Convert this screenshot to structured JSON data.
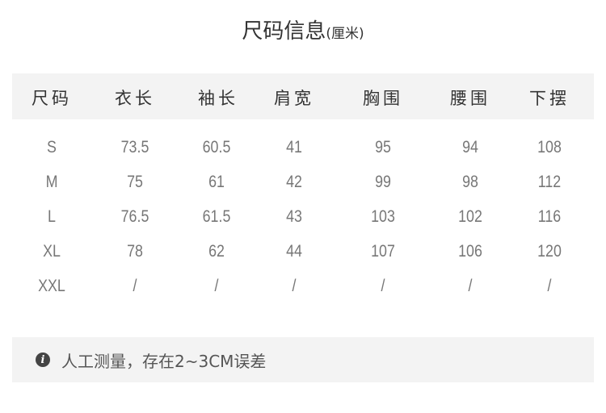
{
  "title": {
    "main": "尺码信息",
    "unit": "(厘米)"
  },
  "headers": [
    "尺码",
    "衣长",
    "袖长",
    "肩宽",
    "胸围",
    "腰围",
    "下摆"
  ],
  "rows": [
    [
      "S",
      "73.5",
      "60.5",
      "41",
      "95",
      "94",
      "108"
    ],
    [
      "M",
      "75",
      "61",
      "42",
      "99",
      "98",
      "112"
    ],
    [
      "L",
      "76.5",
      "61.5",
      "43",
      "103",
      "102",
      "116"
    ],
    [
      "XL",
      "78",
      "62",
      "44",
      "107",
      "106",
      "120"
    ],
    [
      "XXL",
      "/",
      "/",
      "/",
      "/",
      "/",
      "/"
    ]
  ],
  "note": {
    "icon": "info-icon",
    "text": "人工测量，存在2~3CM误差"
  },
  "colors": {
    "header_bg": "#f3f3f3",
    "note_bg": "#f3f3f3"
  }
}
